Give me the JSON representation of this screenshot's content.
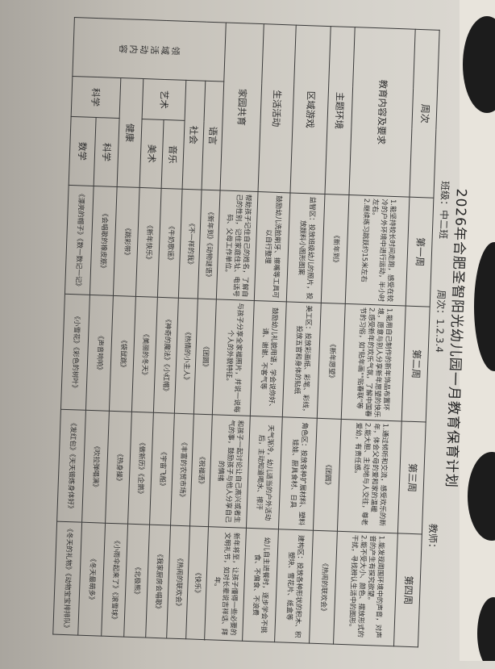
{
  "header": {
    "title": "2026年合肥圣智阳光幼儿园一月教育保育计划",
    "class_label": "班级：中二班",
    "week_label": "周次：1.2.3.4",
    "teacher_label": "教师："
  },
  "table": {
    "corner": "周次",
    "weeks": [
      "第一周",
      "第二周",
      "第三周",
      "第四周"
    ],
    "rows": [
      {
        "label": "教育内容及要求",
        "cells": [
          "1.能坚持较长时间走跑，感受在较冷的户外环境中进行运动，半小时左右。\n2.继续练习跳跃约15米左右",
          "1.能用自己制作的新年饰品布置环境，愿意与别人分享新年愿望的快乐\n2.感受新年的欢乐气氛，了解中国春节的习俗，如\"贴年画\"\"贴春联\"等",
          "1.通过倾听和交流，感受欢乐的新年，体会父母的爱和家的温暖\n2.能大胆、主动地与人交往，尊老爱幼，有责任感。",
          "1.能发现周围环境中的声音，对声音的产生有探究欲望。\n2.能不受大小、颜色、摆放形式的干扰，寻找辨认生活中的图形。"
        ]
      },
      {
        "label": "主题环境",
        "cells": [
          "《新年到》",
          "《新年愿望》",
          "《团圆》",
          "《热闹的联欢会》"
        ]
      },
      {
        "label": "区域游戏",
        "cells": [
          "益智区：投放班级幼儿的照片，投放颜料小图形图案",
          "美工区：投放彩画纸、彩笔、彩线，投放五官和身体的贴纸",
          "角色区：投放各种扩展材料、塑料娃娃、厨具食材、日具",
          "建构区：投放各种形状的积木、积塑块、雪花片、纸盒等"
        ]
      },
      {
        "label": "生活活动",
        "cells": [
          "鼓励幼儿洗脸刷牙、擦嘴等工具可以自行整理",
          "鼓励幼儿礼貌用语，学会说你好、请、谢谢、不客气等",
          "天气渐冷，幼儿适当的户外活动后，主动知道喝水、擦汗",
          "幼儿自主进餐时，逐步学会不挑食、不偏食、不浪费"
        ]
      },
      {
        "label": "家园共育",
        "cells": [
          "帮助孩子记住自己的姓名，了解自己的性别，记住家庭住址、电话号码、父母工作单位。",
          "与孩子分享全家福照片，并说一说每个人的外貌特征。",
          "和孩子一起讨论让自己高兴或者生气的事，鼓励孩子与他人分享自己的情绪",
          "新年将至，让孩子懂得一些必要的文明礼节，如对长辈说吉祥话、拜年。"
        ]
      }
    ],
    "domain_label": "领域活动内容",
    "domain_rows": [
      {
        "group": "语言",
        "cells": [
          "《新年到》《动物谜语》",
          "《团圆》",
          "《祝福语》",
          "《快乐》"
        ]
      },
      {
        "group": "社会",
        "cells": [
          "《不一样的我》",
          "《热情的小主人》",
          "《丰富的农贸市场》",
          "《热闹的联欢会》"
        ]
      },
      {
        "group": "艺术",
        "sub": "音乐",
        "cells": [
          "《牛奶歌谣》",
          "《神奇的魔法》《小红帽》",
          "《宇宙飞船》",
          "《我家厨房会唱歌》"
        ]
      },
      {
        "sub": "美术",
        "cells": [
          "《新年快乐》",
          "《美丽的冬天》",
          "《做新历》《企鹅》",
          "《北极熊》"
        ]
      },
      {
        "group": "健康",
        "cells": [
          "《跳彩带》",
          "《袋鼠跳》",
          "《热身操》",
          "《小雨伞起来了》《滚雪球》"
        ]
      },
      {
        "group": "科学",
        "sub": "科学",
        "cells": [
          "《会唱歌的橡皮筋》",
          "《声音响响》",
          "《吹拉弹唱演》",
          "《冬天最萌多》"
        ]
      },
      {
        "sub": "数学",
        "cells": [
          "《漂亮的帽子》《数一数记一记》",
          "《小雪花》《彩色的树叶》",
          "《发红包》《天天锻炼身体好》",
          "《冬天的礼物》《动物宝宝排排队》"
        ]
      }
    ]
  }
}
